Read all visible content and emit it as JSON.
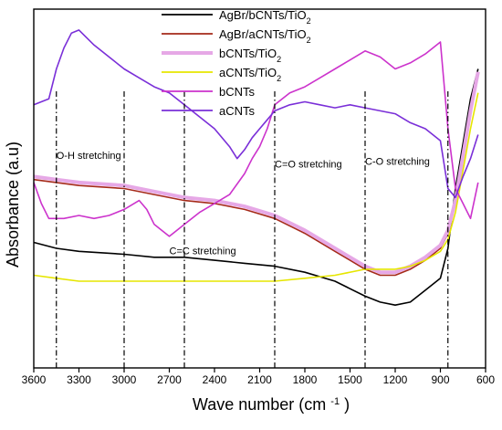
{
  "chart_data": {
    "type": "line",
    "title": "",
    "xlabel": "Wave number",
    "xlabel_unit_base": "(cm",
    "xlabel_unit_sup": "-1",
    "xlabel_unit_end": ")",
    "ylabel": "Absorbance (a.u)",
    "xlim": [
      3600,
      600
    ],
    "x_reversed": true,
    "x_ticks": [
      3600,
      3300,
      3000,
      2700,
      2400,
      2100,
      1800,
      1500,
      1200,
      900,
      600
    ],
    "y_ticks_shown": false,
    "grid": false,
    "legend_position": "top-right",
    "series": [
      {
        "name_parts": [
          "AgBr/bCNTs/TiO",
          "2"
        ],
        "color": "#000000",
        "x": [
          3600,
          3450,
          3300,
          3000,
          2800,
          2600,
          2400,
          2200,
          2000,
          1800,
          1600,
          1400,
          1300,
          1200,
          1100,
          1000,
          900,
          850,
          800,
          700,
          650
        ],
        "y": [
          0.42,
          0.4,
          0.39,
          0.38,
          0.37,
          0.37,
          0.36,
          0.35,
          0.34,
          0.32,
          0.29,
          0.24,
          0.22,
          0.21,
          0.22,
          0.26,
          0.3,
          0.4,
          0.6,
          0.9,
          1.0
        ]
      },
      {
        "name_parts": [
          "AgBr/aCNTs/TiO",
          "2"
        ],
        "color": "#a52a1a",
        "x": [
          3600,
          3450,
          3300,
          3000,
          2800,
          2600,
          2400,
          2200,
          2000,
          1800,
          1600,
          1400,
          1300,
          1200,
          1100,
          1000,
          900,
          850,
          800,
          700,
          650
        ],
        "y": [
          0.63,
          0.62,
          0.61,
          0.6,
          0.58,
          0.56,
          0.55,
          0.53,
          0.5,
          0.45,
          0.39,
          0.33,
          0.31,
          0.31,
          0.33,
          0.36,
          0.4,
          0.45,
          0.55,
          0.85,
          0.98
        ]
      },
      {
        "name_parts": [
          "bCNTs/TiO",
          "2"
        ],
        "color": "#e6a8e6",
        "x": [
          3600,
          3450,
          3300,
          3000,
          2800,
          2600,
          2400,
          2200,
          2000,
          1800,
          1600,
          1400,
          1300,
          1200,
          1100,
          1000,
          900,
          850,
          800,
          700,
          650
        ],
        "y": [
          0.64,
          0.63,
          0.62,
          0.61,
          0.59,
          0.57,
          0.56,
          0.54,
          0.51,
          0.46,
          0.4,
          0.34,
          0.32,
          0.32,
          0.34,
          0.37,
          0.41,
          0.46,
          0.56,
          0.86,
          0.99
        ]
      },
      {
        "name_parts": [
          "aCNTs/TiO",
          "2"
        ],
        "color": "#e6e600",
        "x": [
          3600,
          3450,
          3300,
          3000,
          2800,
          2600,
          2400,
          2200,
          2000,
          1800,
          1600,
          1400,
          1300,
          1200,
          1100,
          1000,
          900,
          850,
          800,
          700,
          650
        ],
        "y": [
          0.31,
          0.3,
          0.29,
          0.29,
          0.29,
          0.29,
          0.29,
          0.29,
          0.29,
          0.3,
          0.31,
          0.33,
          0.33,
          0.33,
          0.34,
          0.36,
          0.39,
          0.43,
          0.52,
          0.8,
          0.92
        ]
      },
      {
        "name_parts": [
          "bCNTs",
          ""
        ],
        "color": "#cc33cc",
        "x": [
          3600,
          3550,
          3500,
          3450,
          3400,
          3300,
          3200,
          3100,
          3000,
          2900,
          2850,
          2800,
          2700,
          2600,
          2500,
          2400,
          2300,
          2200,
          2150,
          2100,
          2050,
          2000,
          1900,
          1800,
          1700,
          1600,
          1500,
          1400,
          1300,
          1200,
          1100,
          1000,
          900,
          850,
          800,
          750,
          700,
          650
        ],
        "y": [
          0.62,
          0.55,
          0.5,
          0.5,
          0.5,
          0.51,
          0.5,
          0.51,
          0.53,
          0.56,
          0.53,
          0.48,
          0.44,
          0.48,
          0.52,
          0.55,
          0.58,
          0.65,
          0.7,
          0.74,
          0.8,
          0.88,
          0.92,
          0.94,
          0.97,
          1.0,
          1.03,
          1.06,
          1.04,
          1.0,
          1.02,
          1.05,
          1.09,
          0.8,
          0.6,
          0.55,
          0.5,
          0.62
        ]
      },
      {
        "name_parts": [
          "aCNTs",
          ""
        ],
        "color": "#7a2fd8",
        "x": [
          3600,
          3500,
          3450,
          3400,
          3350,
          3300,
          3200,
          3100,
          3000,
          2900,
          2800,
          2700,
          2600,
          2500,
          2400,
          2300,
          2250,
          2200,
          2150,
          2100,
          2050,
          2000,
          1900,
          1800,
          1700,
          1600,
          1500,
          1400,
          1300,
          1200,
          1100,
          1000,
          900,
          850,
          800,
          750,
          700,
          650
        ],
        "y": [
          0.88,
          0.9,
          1.0,
          1.07,
          1.12,
          1.13,
          1.08,
          1.04,
          1.0,
          0.97,
          0.94,
          0.92,
          0.88,
          0.84,
          0.8,
          0.74,
          0.7,
          0.73,
          0.77,
          0.8,
          0.83,
          0.86,
          0.88,
          0.89,
          0.88,
          0.87,
          0.88,
          0.87,
          0.86,
          0.85,
          0.82,
          0.8,
          0.76,
          0.6,
          0.57,
          0.64,
          0.7,
          0.78
        ]
      }
    ],
    "vlines": [
      3450,
      3000,
      2600,
      2000,
      1400,
      850
    ],
    "annotations": [
      {
        "text": "O-H stretching",
        "x": 3450,
        "y": 0.7
      },
      {
        "text": "C=C stretching",
        "x": 2700,
        "y": 0.38
      },
      {
        "text": "C=O stretching",
        "x": 2000,
        "y": 0.67
      },
      {
        "text": "C-O stretching",
        "x": 1400,
        "y": 0.68
      }
    ]
  }
}
